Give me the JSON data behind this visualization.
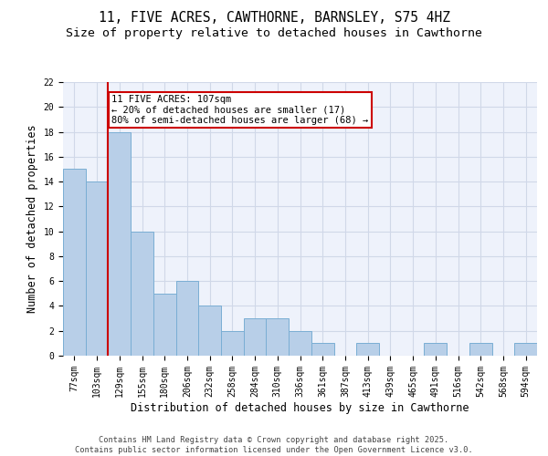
{
  "title1": "11, FIVE ACRES, CAWTHORNE, BARNSLEY, S75 4HZ",
  "title2": "Size of property relative to detached houses in Cawthorne",
  "xlabel": "Distribution of detached houses by size in Cawthorne",
  "ylabel": "Number of detached properties",
  "categories": [
    "77sqm",
    "103sqm",
    "129sqm",
    "155sqm",
    "180sqm",
    "206sqm",
    "232sqm",
    "258sqm",
    "284sqm",
    "310sqm",
    "336sqm",
    "361sqm",
    "387sqm",
    "413sqm",
    "439sqm",
    "465sqm",
    "491sqm",
    "516sqm",
    "542sqm",
    "568sqm",
    "594sqm"
  ],
  "values": [
    15,
    14,
    18,
    10,
    5,
    6,
    4,
    2,
    3,
    3,
    2,
    1,
    0,
    1,
    0,
    0,
    1,
    0,
    1,
    0,
    1
  ],
  "bar_color": "#b8cfe8",
  "bar_edge_color": "#7aaed4",
  "annotation_text": "11 FIVE ACRES: 107sqm\n← 20% of detached houses are smaller (17)\n80% of semi-detached houses are larger (68) →",
  "annotation_box_color": "#ffffff",
  "annotation_box_edge": "#cc0000",
  "red_line_color": "#cc0000",
  "ylim": [
    0,
    22
  ],
  "yticks": [
    0,
    2,
    4,
    6,
    8,
    10,
    12,
    14,
    16,
    18,
    20,
    22
  ],
  "grid_color": "#d0d8e8",
  "background_color": "#eef2fb",
  "footer": "Contains HM Land Registry data © Crown copyright and database right 2025.\nContains public sector information licensed under the Open Government Licence v3.0.",
  "title_fontsize": 10.5,
  "subtitle_fontsize": 9.5,
  "tick_fontsize": 7,
  "ylabel_fontsize": 8.5,
  "xlabel_fontsize": 8.5,
  "footer_fontsize": 6.2,
  "annot_fontsize": 7.5
}
